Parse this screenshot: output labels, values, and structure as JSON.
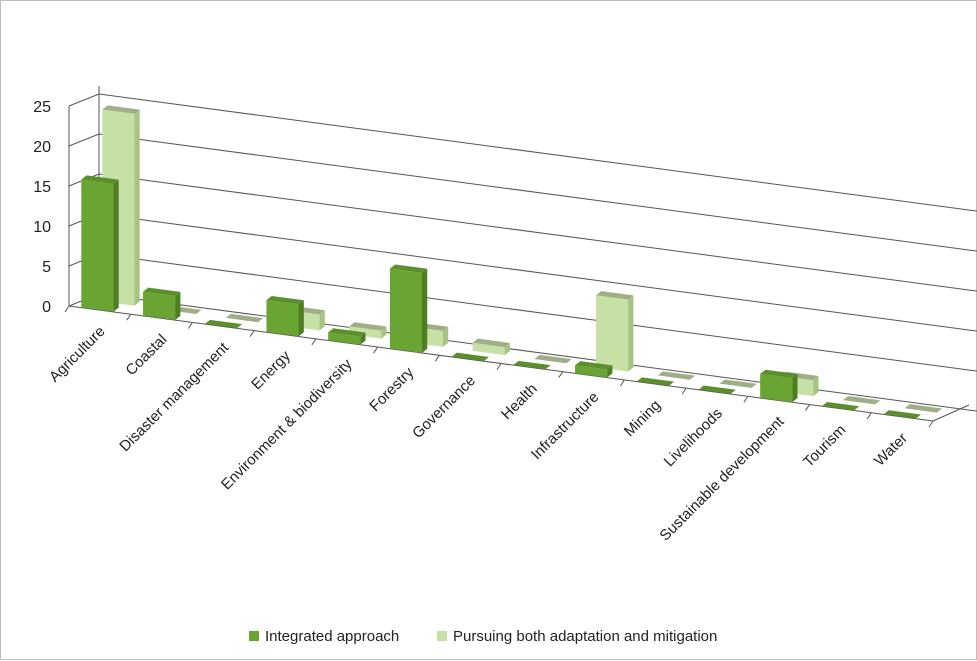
{
  "chart_data": {
    "type": "bar",
    "categories": [
      "Agriculture",
      "Coastal",
      "Disaster management",
      "Energy",
      "Environment & biodiversity",
      "Forestry",
      "Governance",
      "Health",
      "Infrastructure",
      "Mining",
      "Livelihoods",
      "Sustainable development",
      "Tourism",
      "Water"
    ],
    "series": [
      {
        "name": "Integrated approach",
        "values": [
          16,
          3,
          0,
          4,
          1,
          10,
          0,
          0,
          1,
          0,
          0,
          3,
          0,
          0
        ]
      },
      {
        "name": "Pursuing both adaptation and mitigation",
        "values": [
          24,
          0,
          0,
          2,
          1,
          2,
          1,
          0,
          9,
          0,
          0,
          2,
          0,
          0
        ]
      }
    ],
    "title": "",
    "xlabel": "",
    "ylabel": "",
    "ylim": [
      0,
      25
    ],
    "yticks": [
      0,
      5,
      10,
      15,
      20,
      25
    ],
    "grid": true,
    "legend": "bottom",
    "colors": {
      "series1": "#6aa433",
      "series1_side": "#4e7e22",
      "series1_top": "#5b8f2b",
      "series2": "#c6e0a5",
      "series2_side": "#a8c485",
      "series2_top": "#9fae86",
      "grid": "#555555"
    }
  }
}
